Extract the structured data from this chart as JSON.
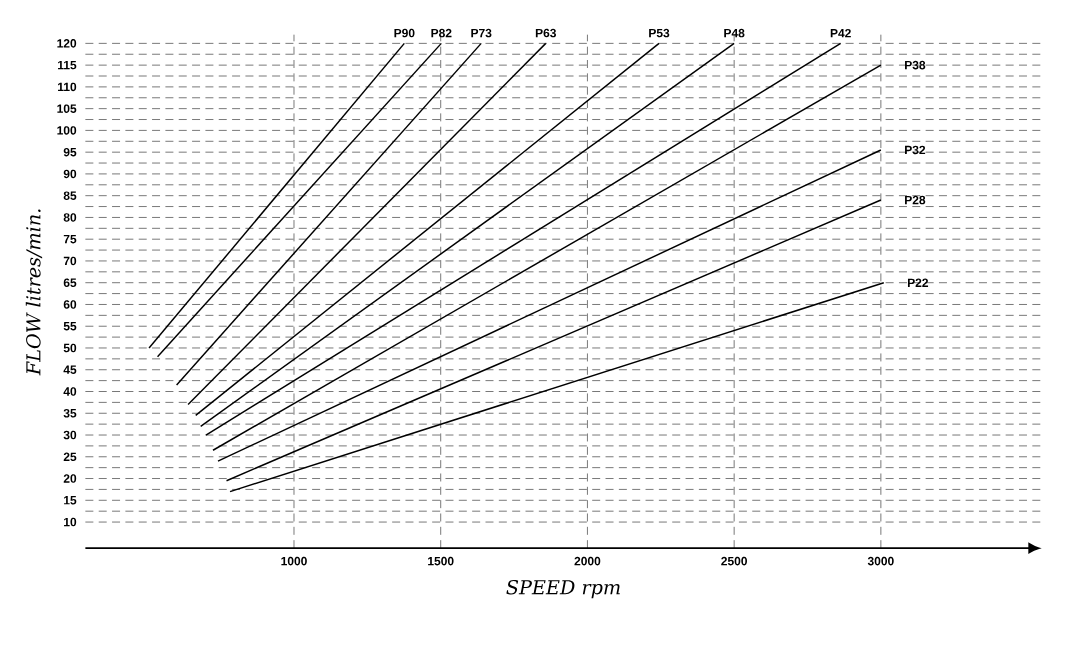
{
  "chart_data": {
    "type": "line",
    "xlabel": "SPEED rpm",
    "ylabel": "FLOW litres/min.",
    "xlim": [
      289,
      3548
    ],
    "ylim": [
      4,
      122
    ],
    "xticks": [
      1000,
      1500,
      2000,
      2500,
      3000
    ],
    "yticks": [
      10,
      15,
      20,
      25,
      30,
      35,
      40,
      45,
      50,
      55,
      60,
      65,
      70,
      75,
      80,
      85,
      90,
      95,
      100,
      105,
      110,
      115,
      120
    ],
    "grid": true,
    "legend": false,
    "marker": "none",
    "line_style": "solid",
    "series": [
      {
        "name": "P90",
        "color": "#000000",
        "x": [
          506,
          1376
        ],
        "values": [
          50,
          120
        ]
      },
      {
        "name": "P82",
        "color": "#000000",
        "x": [
          535,
          1502
        ],
        "values": [
          48,
          120
        ]
      },
      {
        "name": "P73",
        "color": "#000000",
        "x": [
          600,
          1638
        ],
        "values": [
          41.5,
          120
        ]
      },
      {
        "name": "P63",
        "color": "#000000",
        "x": [
          639,
          1858
        ],
        "values": [
          37,
          120
        ]
      },
      {
        "name": "P53",
        "color": "#000000",
        "x": [
          665,
          2244
        ],
        "values": [
          34.5,
          120
        ]
      },
      {
        "name": "P48",
        "color": "#000000",
        "x": [
          682,
          2500
        ],
        "values": [
          32,
          120
        ]
      },
      {
        "name": "P42",
        "color": "#000000",
        "x": [
          700,
          2863
        ],
        "values": [
          30,
          120
        ]
      },
      {
        "name": "P38",
        "color": "#000000",
        "x": [
          724,
          3000
        ],
        "values": [
          26.5,
          115
        ]
      },
      {
        "name": "P32",
        "color": "#000000",
        "x": [
          741,
          3000
        ],
        "values": [
          24,
          95.5
        ]
      },
      {
        "name": "P28",
        "color": "#000000",
        "x": [
          770,
          3000
        ],
        "values": [
          19.5,
          84
        ]
      },
      {
        "name": "P22",
        "color": "#000000",
        "x": [
          782,
          3010
        ],
        "values": [
          17,
          65
        ]
      }
    ]
  }
}
